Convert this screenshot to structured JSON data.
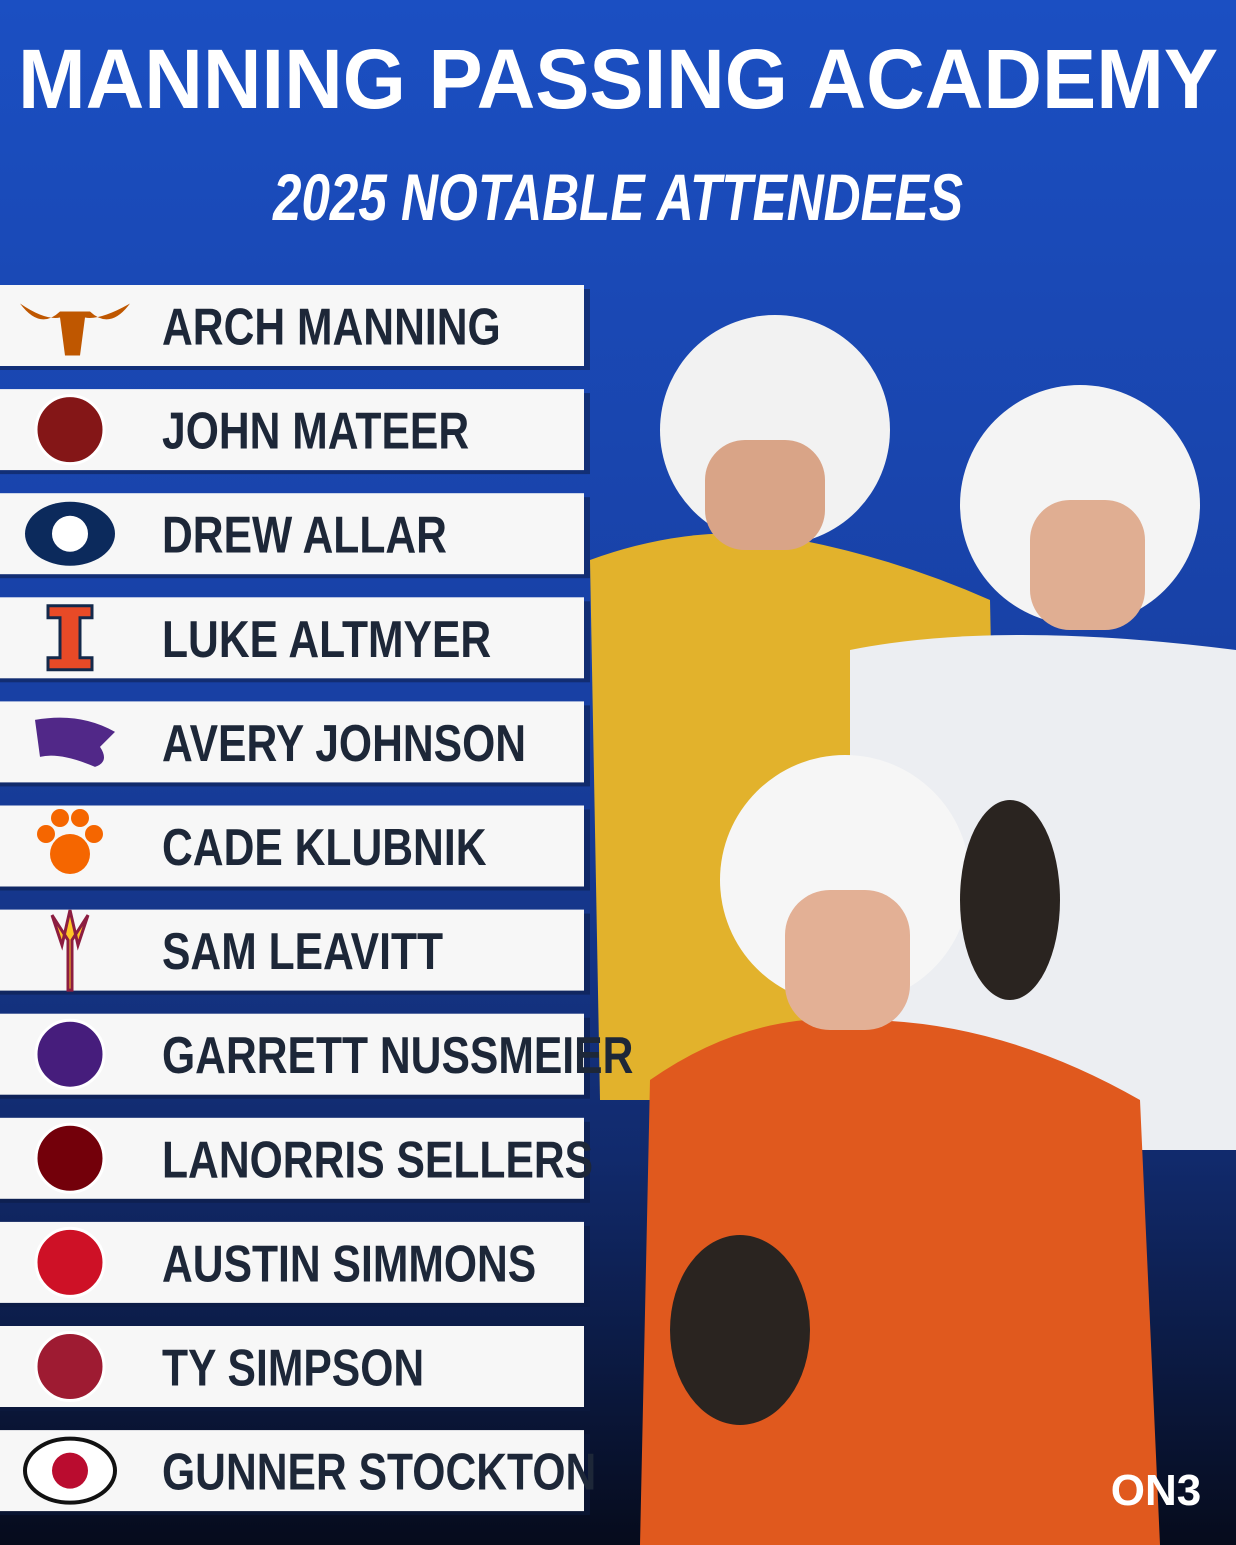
{
  "header": {
    "title": "MANNING PASSING ACADEMY",
    "subtitle": "2025 NOTABLE ATTENDEES"
  },
  "attendees": [
    "ARCH MANNING",
    "JOHN MATEER",
    "DREW ALLAR",
    "LUKE ALTMYER",
    "AVERY JOHNSON",
    "CADE KLUBNIK",
    "SAM LEAVITT",
    "GARRETT NUSSMEIER",
    "LANORRIS SELLERS",
    "AUSTIN SIMMONS",
    "TY SIMPSON",
    "GUNNER STOCKTON"
  ],
  "brand": "ON3"
}
